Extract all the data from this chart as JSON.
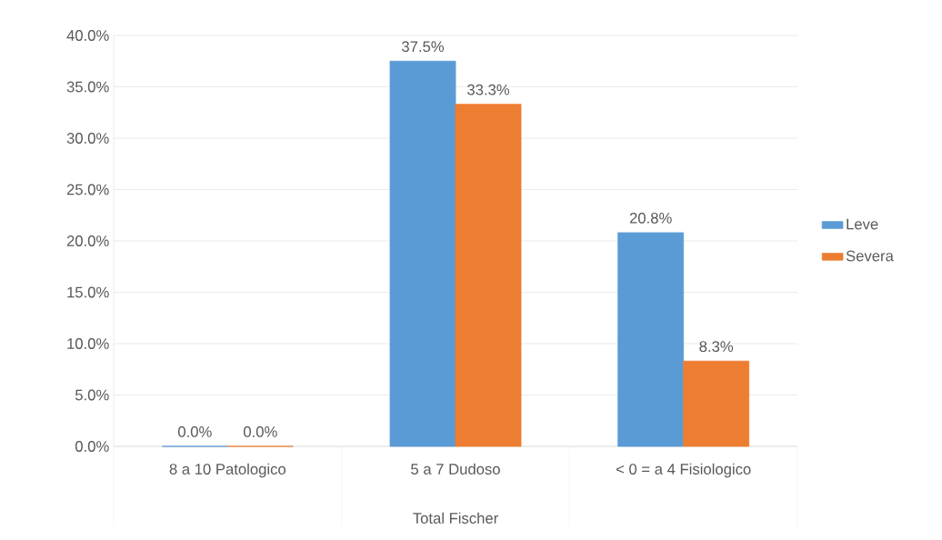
{
  "chart_data": {
    "type": "bar",
    "xlabel": "Total Fischer",
    "categories": [
      "8 a 10 Patologico",
      "5 a 7 Dudoso",
      "< 0 = a 4 Fisiologico"
    ],
    "series": [
      {
        "name": "Leve",
        "color": "#5b9bd5",
        "values": [
          0,
          37.5,
          20.8
        ],
        "value_labels": [
          "0.0%",
          "37.5%",
          "20.8%"
        ]
      },
      {
        "name": "Severa",
        "color": "#ed7d31",
        "values": [
          0,
          33.3,
          8.3
        ],
        "value_labels": [
          "0.0%",
          "33.3%",
          "8.3%"
        ]
      }
    ],
    "ylim": [
      0,
      40
    ],
    "yticks": [
      {
        "value": 0,
        "label": "0.0%"
      },
      {
        "value": 5,
        "label": "5.0%"
      },
      {
        "value": 10,
        "label": "10.0%"
      },
      {
        "value": 15,
        "label": "15.0%"
      },
      {
        "value": 20,
        "label": "20.0%"
      },
      {
        "value": 25,
        "label": "25.0%"
      },
      {
        "value": 30,
        "label": "30.0%"
      },
      {
        "value": 35,
        "label": "35.0%"
      },
      {
        "value": 40,
        "label": "40.0%"
      }
    ],
    "grid": "y",
    "legend": "right"
  }
}
